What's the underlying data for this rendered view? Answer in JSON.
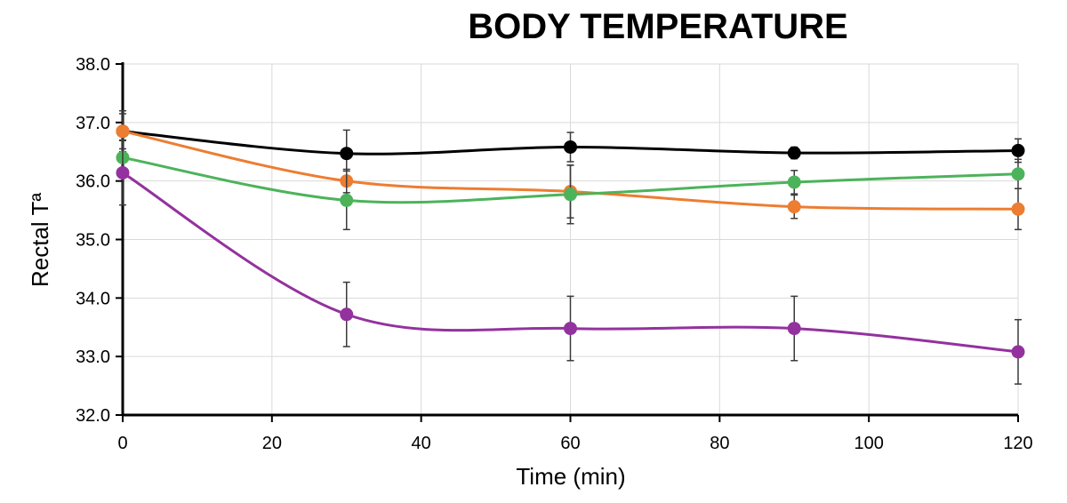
{
  "chart_data": {
    "type": "line",
    "title": "BODY TEMPERATURE",
    "xlabel": "Time (min)",
    "ylabel": "Rectal Tª",
    "xlim": [
      0,
      120
    ],
    "ylim": [
      32.0,
      38.0
    ],
    "x_ticks": [
      0,
      20,
      40,
      60,
      80,
      100,
      120
    ],
    "y_ticks": [
      "32.0",
      "33.0",
      "34.0",
      "35.0",
      "36.0",
      "37.0",
      "38.0"
    ],
    "grid": true,
    "legend": "none",
    "series": [
      {
        "color": "#000000",
        "x": [
          0,
          30,
          60,
          90,
          120
        ],
        "y": [
          36.85,
          36.47,
          36.58,
          36.48,
          36.52
        ],
        "err": [
          0.35,
          0.4,
          0.25,
          0.1,
          0.2
        ]
      },
      {
        "color": "#ed7d31",
        "x": [
          0,
          30,
          60,
          90,
          120
        ],
        "y": [
          36.85,
          36.0,
          35.82,
          35.56,
          35.52
        ],
        "err": [
          0.3,
          0.2,
          0.45,
          0.2,
          0.35
        ]
      },
      {
        "color": "#4cb35a",
        "x": [
          0,
          30,
          60,
          90,
          120
        ],
        "y": [
          36.4,
          35.67,
          35.77,
          35.98,
          36.12
        ],
        "err": [
          0.3,
          0.5,
          0.5,
          0.2,
          0.25
        ]
      },
      {
        "color": "#93329e",
        "x": [
          0,
          30,
          60,
          90,
          120
        ],
        "y": [
          36.14,
          33.72,
          33.48,
          33.48,
          33.08
        ],
        "err": [
          0.55,
          0.55,
          0.55,
          0.55,
          0.55
        ]
      }
    ]
  }
}
